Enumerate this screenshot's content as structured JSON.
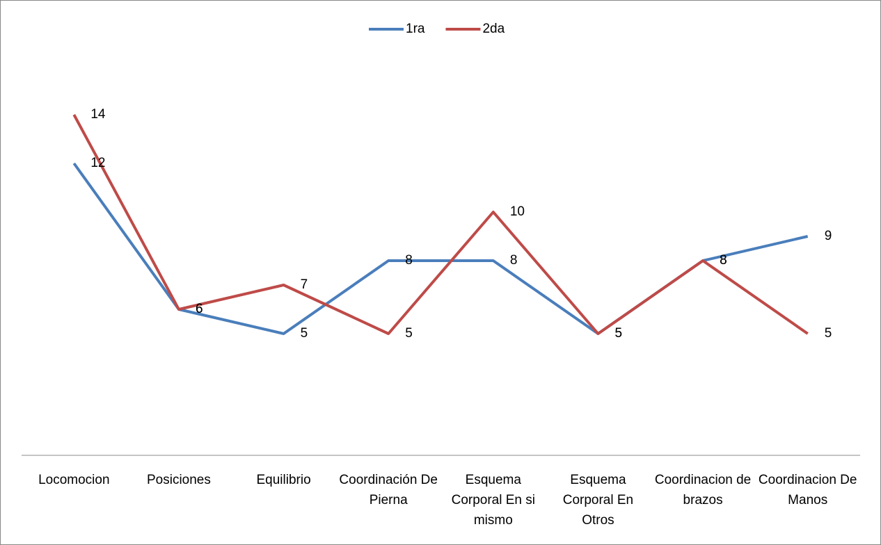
{
  "chart_data": {
    "type": "line",
    "categories": [
      "Locomocion",
      "Posiciones",
      "Equilibrio",
      "Coordinación De Pierna",
      "Esquema Corporal En si mismo",
      "Esquema Corporal En Otros",
      "Coordinacion de brazos",
      "Coordinacion De Manos"
    ],
    "series": [
      {
        "name": "1ra",
        "color": "#4a7ebb",
        "values": [
          12,
          6,
          5,
          8,
          8,
          5,
          8,
          9
        ]
      },
      {
        "name": "2da",
        "color": "#be4b48",
        "values": [
          14,
          6,
          7,
          5,
          10,
          5,
          8,
          5
        ]
      }
    ],
    "ylim": [
      0,
      16
    ],
    "legend": "top"
  }
}
